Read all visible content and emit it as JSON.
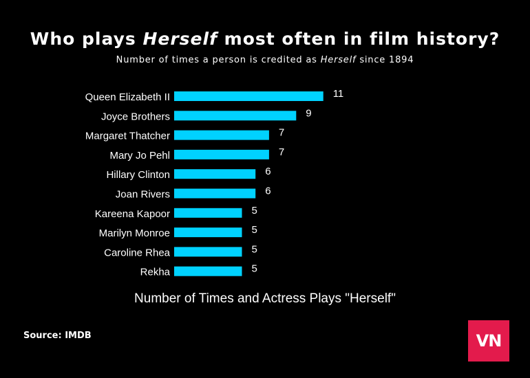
{
  "header": {
    "title_pre": "Who plays ",
    "title_em": "Herself",
    "title_post": " most often in film history?",
    "subtitle_pre": "Number of times a person is credited as ",
    "subtitle_em": "Herself",
    "subtitle_post": " since 1894"
  },
  "source": "Source: IMDB",
  "logo_text": "VN",
  "colors": {
    "bar": "#00d2ff",
    "background": "#000000",
    "logo": "#e31b4c"
  },
  "chart_data": {
    "type": "bar",
    "orientation": "horizontal",
    "categories": [
      "Queen Elizabeth II",
      "Joyce Brothers",
      "Margaret Thatcher",
      "Mary Jo Pehl",
      "Hillary Clinton",
      "Joan Rivers",
      "Kareena Kapoor",
      "Marilyn Monroe",
      "Caroline Rhea",
      "Rekha"
    ],
    "values": [
      11,
      9,
      7,
      7,
      6,
      6,
      5,
      5,
      5,
      5
    ],
    "xlabel": "Number of Times and Actress Plays \"Herself\"",
    "ylabel": "",
    "grid": false,
    "legend": "none"
  }
}
